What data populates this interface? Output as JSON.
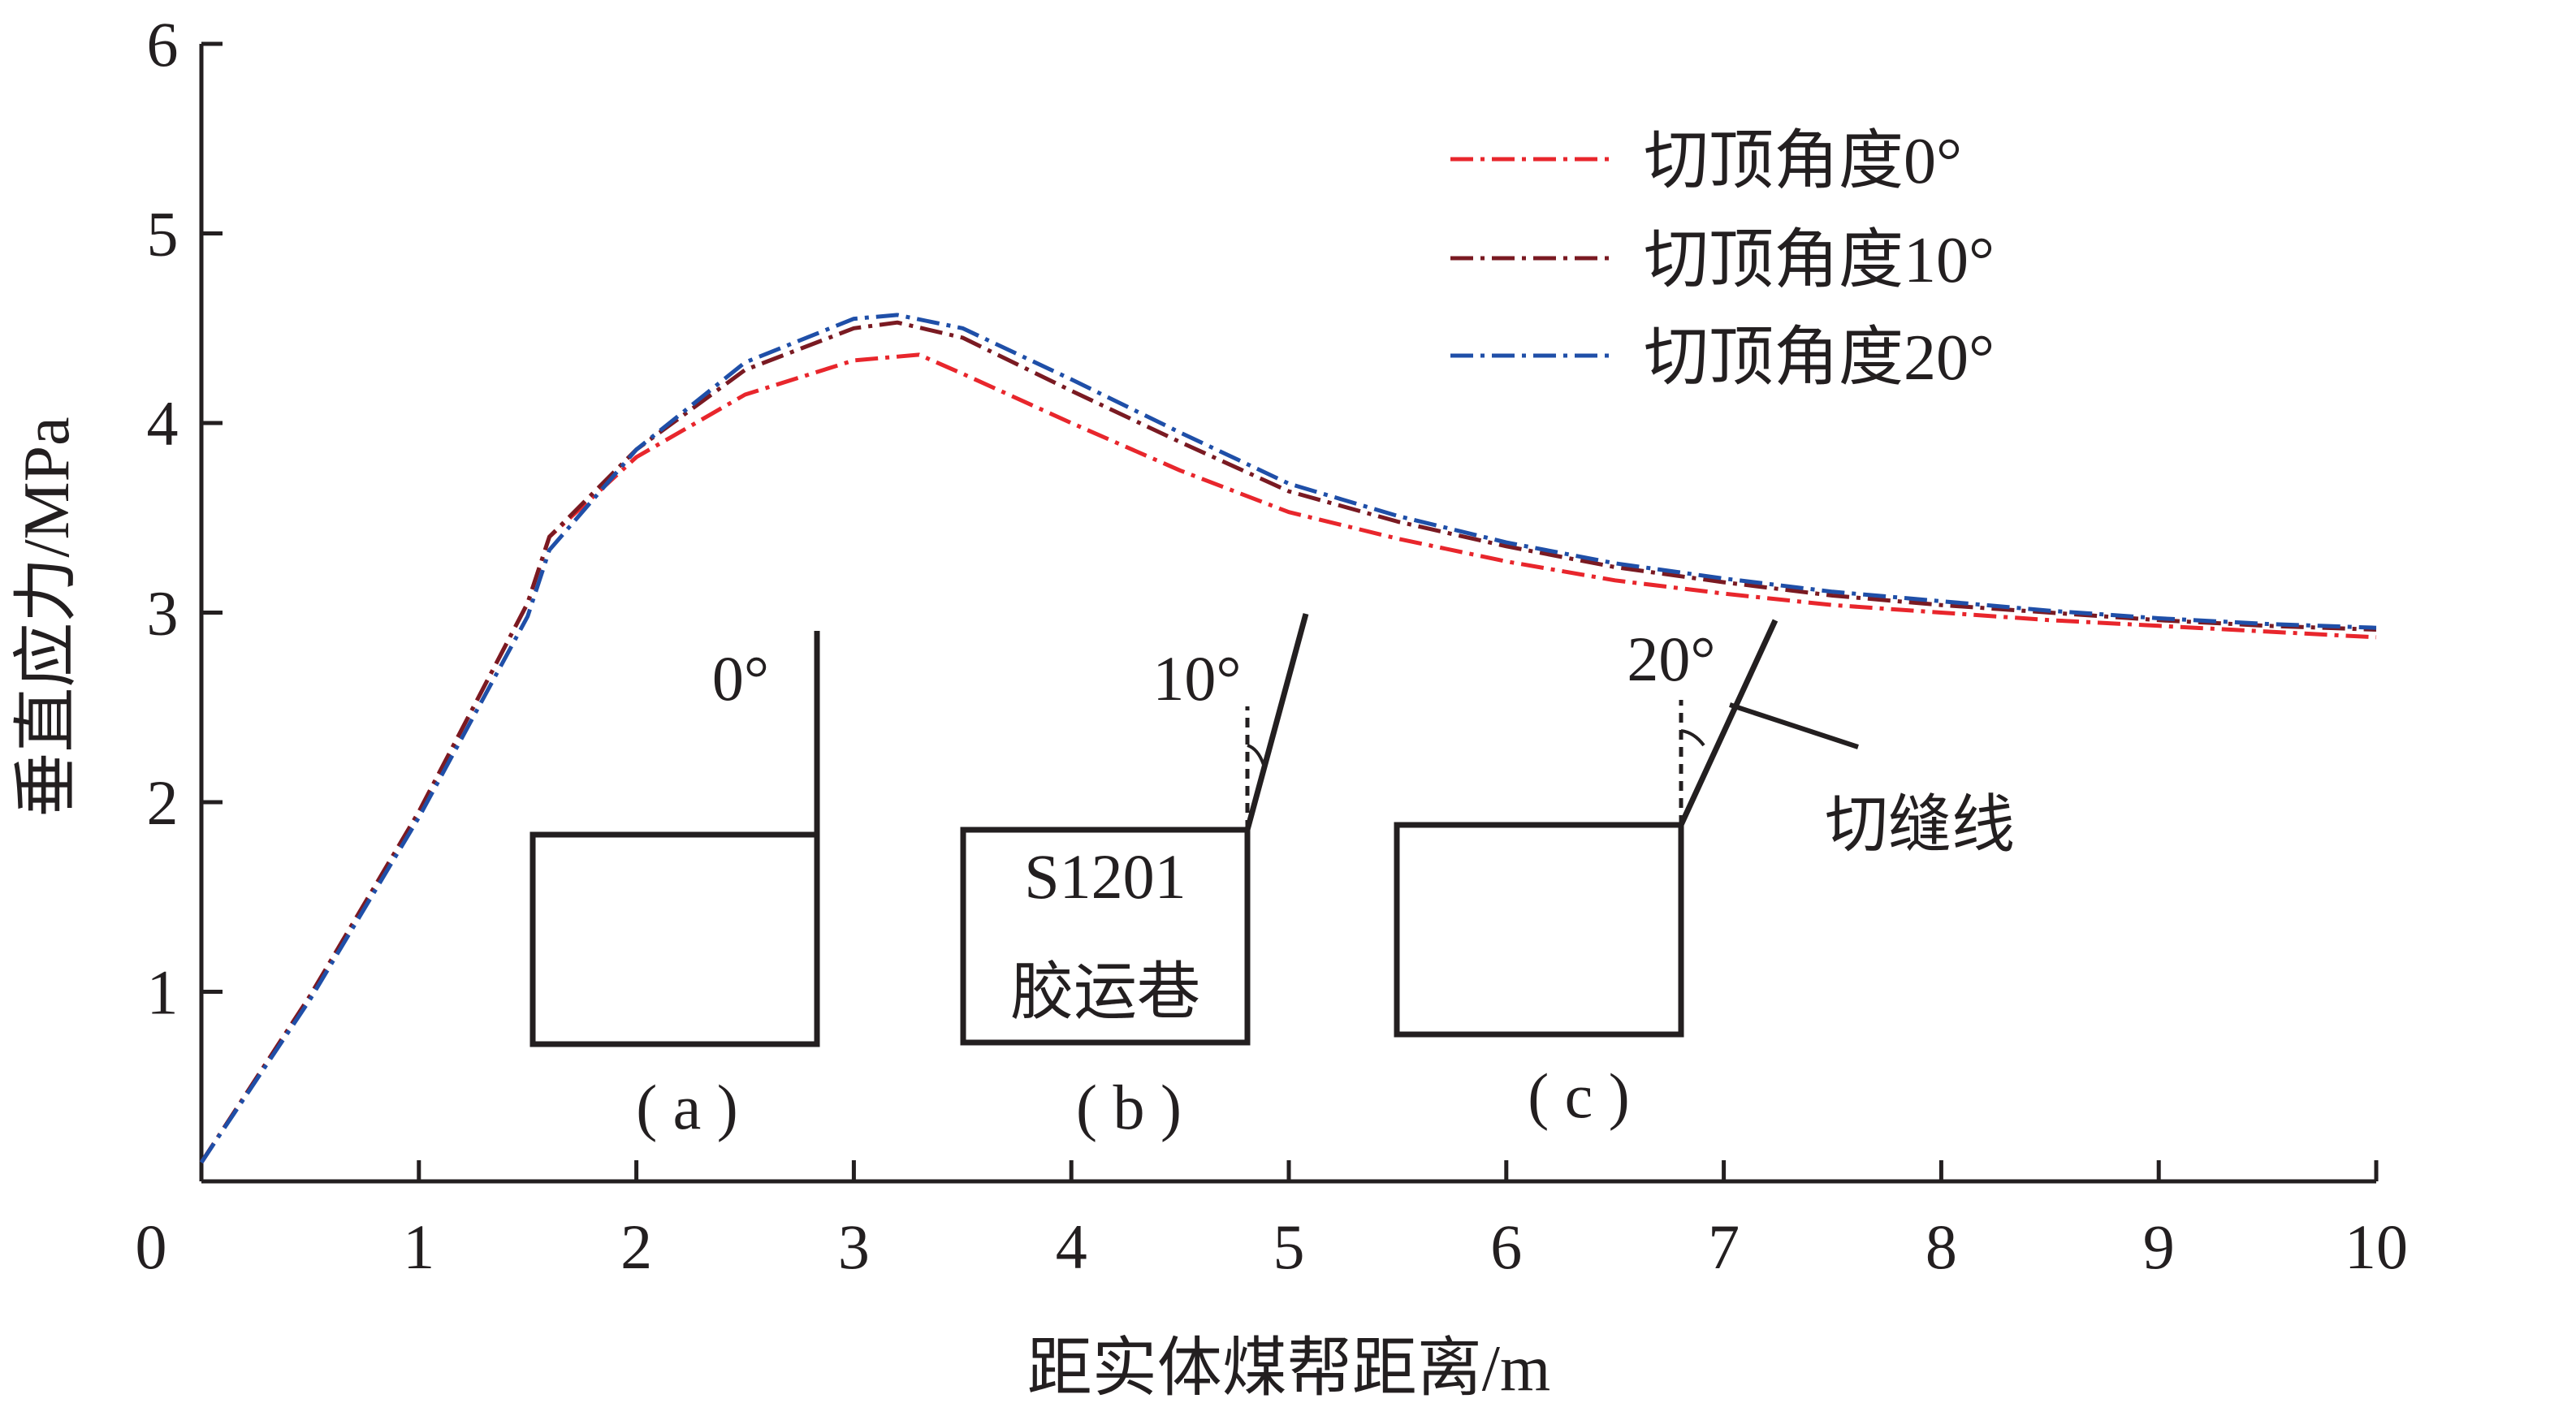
{
  "chart_data": {
    "type": "line",
    "xlabel": "距实体煤帮距离/m",
    "ylabel": "垂直应力/MPa",
    "xlim": [
      0,
      10
    ],
    "ylim": [
      0,
      6
    ],
    "xticks": [
      0,
      1,
      2,
      3,
      4,
      5,
      6,
      7,
      8,
      9,
      10
    ],
    "yticks": [
      1,
      2,
      3,
      4,
      5,
      6
    ],
    "origin_label": "0",
    "grid": false,
    "legend_position": "top-right",
    "series": [
      {
        "name": "切顶角度0°",
        "color": "#e8262c",
        "dash": "dash-dot",
        "x": [
          0,
          0.5,
          1.0,
          1.5,
          1.6,
          2.0,
          2.5,
          3.0,
          3.3,
          3.5,
          4.0,
          4.5,
          5.0,
          5.5,
          6.0,
          6.5,
          7.0,
          7.5,
          8.0,
          8.5,
          9.0,
          9.5,
          10.0
        ],
        "y": [
          0.1,
          0.98,
          1.95,
          3.05,
          3.4,
          3.82,
          4.15,
          4.33,
          4.36,
          4.26,
          4.0,
          3.75,
          3.53,
          3.39,
          3.27,
          3.17,
          3.1,
          3.04,
          3.0,
          2.96,
          2.93,
          2.9,
          2.87
        ]
      },
      {
        "name": "切顶角度10°",
        "color": "#7a1a22",
        "dash": "dash-dot",
        "x": [
          0,
          0.5,
          1.0,
          1.5,
          1.6,
          2.0,
          2.5,
          3.0,
          3.2,
          3.5,
          4.0,
          4.5,
          5.0,
          5.5,
          6.0,
          6.5,
          7.0,
          7.5,
          8.0,
          8.5,
          9.0,
          9.5,
          10.0
        ],
        "y": [
          0.1,
          0.98,
          1.95,
          3.05,
          3.4,
          3.86,
          4.28,
          4.5,
          4.53,
          4.45,
          4.17,
          3.9,
          3.64,
          3.48,
          3.35,
          3.24,
          3.16,
          3.09,
          3.04,
          3.0,
          2.96,
          2.93,
          2.91
        ]
      },
      {
        "name": "切顶角度20°",
        "color": "#1f4fa8",
        "dash": "dash-dot",
        "x": [
          0,
          0.5,
          1.0,
          1.5,
          1.6,
          2.0,
          2.5,
          3.0,
          3.2,
          3.5,
          4.0,
          4.5,
          5.0,
          5.5,
          6.0,
          6.5,
          7.0,
          7.5,
          8.0,
          8.5,
          9.0,
          9.5,
          10.0
        ],
        "y": [
          0.1,
          0.96,
          1.92,
          2.98,
          3.33,
          3.86,
          4.32,
          4.55,
          4.57,
          4.5,
          4.23,
          3.95,
          3.68,
          3.51,
          3.37,
          3.26,
          3.18,
          3.11,
          3.06,
          3.01,
          2.97,
          2.94,
          2.92
        ]
      }
    ],
    "insets": [
      {
        "angle_label": "0°",
        "caption": "( a )",
        "box_text": []
      },
      {
        "angle_label": "10°",
        "caption": "( b )",
        "box_text": [
          "S1201",
          "胶运巷"
        ]
      },
      {
        "angle_label": "20°",
        "caption": "( c )",
        "box_text": [],
        "cut_line_label": "切缝线"
      }
    ]
  }
}
